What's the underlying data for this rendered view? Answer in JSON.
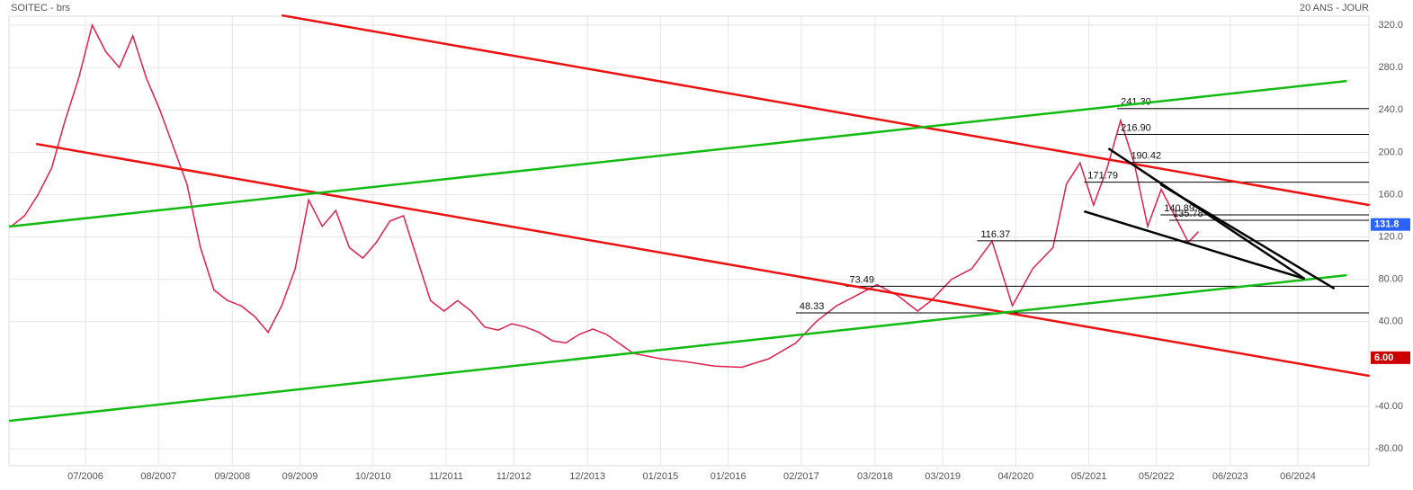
{
  "chart_data": {
    "type": "line",
    "title": "SOITEC - brs",
    "subtitle": "20 ANS - JOUR",
    "series": [
      {
        "name": "SOITEC",
        "color": "#e0204a",
        "x": [
          2005.4,
          2005.6,
          2005.8,
          2006.0,
          2006.2,
          2006.4,
          2006.6,
          2006.8,
          2007.0,
          2007.2,
          2007.4,
          2007.6,
          2007.8,
          2008.0,
          2008.2,
          2008.4,
          2008.6,
          2008.8,
          2009.0,
          2009.2,
          2009.4,
          2009.6,
          2009.8,
          2010.0,
          2010.2,
          2010.4,
          2010.6,
          2010.8,
          2011.0,
          2011.2,
          2011.4,
          2011.6,
          2011.8,
          2012.0,
          2012.2,
          2012.4,
          2012.6,
          2012.8,
          2013.0,
          2013.2,
          2013.4,
          2013.6,
          2013.8,
          2014.0,
          2014.2,
          2014.6,
          2015.0,
          2015.4,
          2015.8,
          2016.2,
          2016.6,
          2017.0,
          2017.3,
          2017.6,
          2017.9,
          2018.2,
          2018.5,
          2018.8,
          2019.0,
          2019.3,
          2019.6,
          2019.9,
          2020.2,
          2020.5,
          2020.8,
          2021.0,
          2021.2,
          2021.4,
          2021.6,
          2021.8,
          2022.0,
          2022.2,
          2022.4,
          2022.6,
          2022.8,
          2022.95
        ],
        "values": [
          130,
          140,
          160,
          185,
          230,
          270,
          320,
          295,
          280,
          310,
          270,
          240,
          205,
          170,
          110,
          70,
          60,
          55,
          45,
          30,
          55,
          90,
          155,
          130,
          145,
          110,
          100,
          115,
          135,
          140,
          100,
          60,
          50,
          60,
          50,
          35,
          32,
          38,
          35,
          30,
          22,
          20,
          28,
          33,
          28,
          10,
          5,
          2,
          -2,
          -3,
          5,
          20,
          40,
          55,
          65,
          75,
          65,
          50,
          60,
          80,
          90,
          116,
          55,
          90,
          110,
          170,
          190,
          150,
          185,
          230,
          190,
          130,
          165,
          140,
          115,
          125
        ]
      }
    ],
    "xlim": [
      2005.37,
      2025.47
    ],
    "ylim": [
      -96,
      328.5
    ],
    "xticks": [
      {
        "value": 2006.5,
        "label": "07/2006"
      },
      {
        "value": 2007.58,
        "label": "08/2007"
      },
      {
        "value": 2008.67,
        "label": "09/2008"
      },
      {
        "value": 2009.67,
        "label": "09/2009"
      },
      {
        "value": 2010.75,
        "label": "10/2010"
      },
      {
        "value": 2011.83,
        "label": "11/2011"
      },
      {
        "value": 2012.83,
        "label": "11/2012"
      },
      {
        "value": 2013.92,
        "label": "12/2013"
      },
      {
        "value": 2015.0,
        "label": "01/2015"
      },
      {
        "value": 2016.0,
        "label": "01/2016"
      },
      {
        "value": 2017.08,
        "label": "02/2017"
      },
      {
        "value": 2018.17,
        "label": "03/2018"
      },
      {
        "value": 2019.17,
        "label": "03/2019"
      },
      {
        "value": 2020.25,
        "label": "04/2020"
      },
      {
        "value": 2021.33,
        "label": "05/2021"
      },
      {
        "value": 2022.33,
        "label": "05/2022"
      },
      {
        "value": 2023.42,
        "label": "06/2023"
      },
      {
        "value": 2024.42,
        "label": "06/2024"
      }
    ],
    "yticks": [
      {
        "value": 320,
        "label": "320.0"
      },
      {
        "value": 280,
        "label": "280.0"
      },
      {
        "value": 240,
        "label": "240.0"
      },
      {
        "value": 200,
        "label": "200.0"
      },
      {
        "value": 160,
        "label": "160.0"
      },
      {
        "value": 120,
        "label": "120.0"
      },
      {
        "value": 80,
        "label": "80.00"
      },
      {
        "value": 40,
        "label": "40.00"
      },
      {
        "value": -40,
        "label": "-40.00"
      },
      {
        "value": -80,
        "label": "-80.00"
      }
    ],
    "grid": true,
    "trendlines": [
      {
        "color": "#ee1111",
        "x": [
          2009.4,
          2025.48
        ],
        "y": [
          329.3,
          150.1
        ]
      },
      {
        "color": "#ee1111",
        "x": [
          2005.77,
          2025.48
        ],
        "y": [
          207.9,
          -11.2
        ]
      },
      {
        "color": "#11bb11",
        "x": [
          2005.37,
          2025.14
        ],
        "y": [
          129.8,
          267.3
        ]
      },
      {
        "color": "#11bb11",
        "x": [
          2005.37,
          2025.14
        ],
        "y": [
          -53.7,
          83.9
        ]
      },
      {
        "color": "#000000",
        "x": [
          2021.62,
          2024.52
        ],
        "y": [
          203.6,
          80.5
        ]
      },
      {
        "color": "#000000",
        "x": [
          2021.26,
          2024.52
        ],
        "y": [
          144.2,
          80.5
        ]
      },
      {
        "color": "#000000",
        "x": [
          2022.39,
          2024.96
        ],
        "y": [
          169.7,
          71.2
        ]
      }
    ],
    "levels": [
      {
        "value": 241.3,
        "label": "241.30",
        "x0": 2021.75
      },
      {
        "value": 216.9,
        "label": "216.90",
        "x0": 2021.75
      },
      {
        "value": 190.42,
        "label": "190.42",
        "x0": 2021.9
      },
      {
        "value": 171.79,
        "label": "171.79",
        "x0": 2021.26
      },
      {
        "value": 140.89,
        "label": "140.89",
        "x0": 2022.39
      },
      {
        "value": 135.78,
        "label": "135.78",
        "x0": 2022.52
      },
      {
        "value": 116.37,
        "label": "116.37",
        "x0": 2019.68
      },
      {
        "value": 73.49,
        "label": "73.49",
        "x0": 2017.74
      },
      {
        "value": 48.33,
        "label": "48.33",
        "x0": 2017.0
      }
    ],
    "price_tags": [
      {
        "value": 131.8,
        "color": "#2962ff"
      },
      {
        "value": 6,
        "label": "6.00",
        "color": "#cc0000"
      }
    ]
  }
}
